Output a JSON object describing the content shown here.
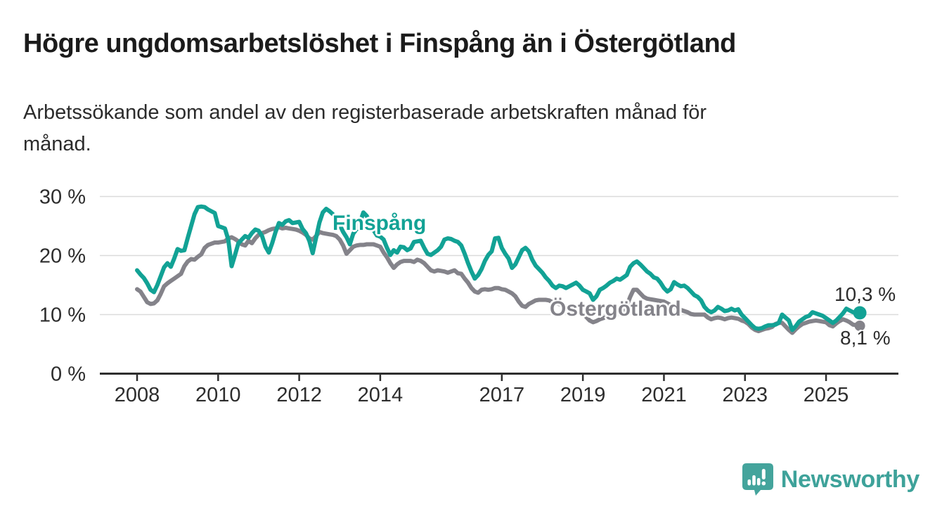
{
  "header": {
    "title": "Högre ungdomsarbetslöshet i Finspång än i Östergötland",
    "subtitle": "Arbetssökande som andel av den registerbaserade arbetskraften månad för\nmånad."
  },
  "footer": {
    "brand": "Newsworthy",
    "logo_icon": "speech-bubble-with-bar-chart-and-exclamation"
  },
  "colors": {
    "finspang": "#12A295",
    "ostergotland": "#84838A",
    "grid": "#DBDBDB",
    "axis": "#2E2E2E",
    "tick_text": "#2D2D2D",
    "logo": "#44A49C"
  },
  "chart_data": {
    "type": "line",
    "title": "Högre ungdomsarbetslöshet i Finspång än i Östergötland",
    "subtitle": "Arbetssökande som andel av den registerbaserade arbetskraften månad för månad.",
    "unit": "%",
    "frequency": "monthly",
    "x_start": "2008-01",
    "x_end": "2025-11",
    "ylim": [
      0,
      32
    ],
    "grid": "horizontal",
    "y_axis_ticks": [
      {
        "value": 30,
        "label": "30 %"
      },
      {
        "value": 20,
        "label": "20 %"
      },
      {
        "value": 10,
        "label": "10 %"
      },
      {
        "value": 0,
        "label": "0 %"
      }
    ],
    "x_axis_ticks": [
      {
        "year": 2008,
        "label": "2008"
      },
      {
        "year": 2010,
        "label": "2010"
      },
      {
        "year": 2012,
        "label": "2012"
      },
      {
        "year": 2014,
        "label": "2014"
      },
      {
        "year": 2017,
        "label": "2017"
      },
      {
        "year": 2019,
        "label": "2019"
      },
      {
        "year": 2021,
        "label": "2021"
      },
      {
        "year": 2023,
        "label": "2023"
      },
      {
        "year": 2025,
        "label": "2025"
      }
    ],
    "series": [
      {
        "name": "Finspång",
        "color": "#12A295",
        "end_label": "10,3 %",
        "end_value": 10.3,
        "end_dot": true,
        "values": [
          17.5,
          16.8,
          16.2,
          15.3,
          14.2,
          13.8,
          15.0,
          16.5,
          18.0,
          18.7,
          18.1,
          19.5,
          21.1,
          20.8,
          20.9,
          23.0,
          25.0,
          27.0,
          28.2,
          28.3,
          28.2,
          27.8,
          27.5,
          27.2,
          25.0,
          24.8,
          24.6,
          22.7,
          18.2,
          20.1,
          22.1,
          22.7,
          23.3,
          23.0,
          23.8,
          24.4,
          24.2,
          23.3,
          21.5,
          20.5,
          22.1,
          24.0,
          25.5,
          25.2,
          25.8,
          26.0,
          25.5,
          25.6,
          25.7,
          24.5,
          23.8,
          22.5,
          20.4,
          23.0,
          25.6,
          27.3,
          27.9,
          27.5,
          27.0,
          26.3,
          25.2,
          24.0,
          23.1,
          21.9,
          23.7,
          24.5,
          25.6,
          27.3,
          26.7,
          25.4,
          24.3,
          23.4,
          23.2,
          22.7,
          21.3,
          20.1,
          20.9,
          20.5,
          21.5,
          21.4,
          20.9,
          21.2,
          22.3,
          22.4,
          22.5,
          21.3,
          20.3,
          20.1,
          20.5,
          20.9,
          21.5,
          22.7,
          22.9,
          22.8,
          22.5,
          22.3,
          21.7,
          20.3,
          18.7,
          17.3,
          16.1,
          16.7,
          17.7,
          19.1,
          20.1,
          20.7,
          22.9,
          23.0,
          21.3,
          20.3,
          19.5,
          17.9,
          18.5,
          19.7,
          20.9,
          21.3,
          20.7,
          19.3,
          18.3,
          17.7,
          17.1,
          16.3,
          15.7,
          14.9,
          14.5,
          14.9,
          14.8,
          14.5,
          14.8,
          15.1,
          15.4,
          14.9,
          14.2,
          13.9,
          13.6,
          12.5,
          13.1,
          14.2,
          14.5,
          14.9,
          15.4,
          15.7,
          16.1,
          15.9,
          16.3,
          16.7,
          18.1,
          18.7,
          19.0,
          18.5,
          17.9,
          17.3,
          16.9,
          16.3,
          16.1,
          15.4,
          14.5,
          13.9,
          14.3,
          15.5,
          15.1,
          14.8,
          14.9,
          14.5,
          13.9,
          13.3,
          13.0,
          12.4,
          11.3,
          10.7,
          10.4,
          10.7,
          11.3,
          11.0,
          10.6,
          10.7,
          11.0,
          10.7,
          10.9,
          10.0,
          9.4,
          8.8,
          8.2,
          7.7,
          7.6,
          7.7,
          8.0,
          8.2,
          8.2,
          8.3,
          8.6,
          10.0,
          9.5,
          9.0,
          7.4,
          8.0,
          8.8,
          9.2,
          9.6,
          9.8,
          10.4,
          10.2,
          10.0,
          9.8,
          9.4,
          9.0,
          8.6,
          9.0,
          9.6,
          10.2,
          11.0,
          10.7,
          10.4,
          10.2,
          10.3
        ]
      },
      {
        "name": "Östergötland",
        "color": "#84838A",
        "end_label": "8,1 %",
        "end_value": 8.1,
        "end_dot": true,
        "values": [
          14.3,
          13.9,
          13.0,
          12.1,
          11.8,
          11.9,
          12.4,
          13.5,
          14.8,
          15.3,
          15.7,
          16.1,
          16.5,
          16.9,
          18.2,
          19.0,
          19.4,
          19.3,
          19.8,
          20.2,
          21.3,
          21.8,
          22.0,
          22.2,
          22.2,
          22.3,
          22.4,
          22.9,
          23.1,
          22.8,
          22.4,
          21.9,
          21.7,
          22.5,
          22.1,
          22.9,
          23.5,
          23.8,
          24.0,
          24.3,
          24.5,
          24.6,
          24.8,
          24.6,
          24.7,
          24.6,
          24.5,
          24.4,
          24.2,
          23.9,
          23.5,
          22.9,
          22.7,
          23.3,
          24.0,
          23.8,
          23.7,
          23.6,
          23.5,
          23.3,
          22.7,
          21.7,
          20.3,
          20.9,
          21.5,
          21.7,
          21.8,
          21.8,
          21.9,
          21.9,
          21.9,
          21.7,
          21.5,
          20.5,
          19.7,
          18.7,
          17.9,
          18.5,
          18.9,
          19.1,
          19.1,
          19.1,
          18.9,
          19.3,
          19.1,
          18.7,
          18.1,
          17.5,
          17.3,
          17.5,
          17.4,
          17.3,
          17.1,
          17.3,
          17.5,
          17.0,
          16.9,
          16.1,
          15.4,
          14.5,
          13.9,
          13.7,
          14.2,
          14.3,
          14.2,
          14.3,
          14.5,
          14.5,
          14.3,
          14.2,
          13.9,
          13.6,
          13.1,
          12.2,
          11.5,
          11.3,
          11.8,
          12.1,
          12.4,
          12.5,
          12.5,
          12.5,
          12.4,
          12.1,
          11.9,
          11.8,
          11.5,
          11.3,
          11.1,
          10.8,
          10.6,
          10.4,
          10.2,
          9.6,
          9.0,
          8.7,
          8.9,
          9.2,
          9.4,
          9.6,
          9.8,
          10.0,
          10.1,
          10.2,
          10.3,
          11.5,
          13.0,
          14.2,
          14.2,
          13.6,
          13.0,
          12.7,
          12.6,
          12.5,
          12.4,
          12.3,
          12.2,
          11.9,
          11.6,
          11.3,
          11.0,
          10.8,
          10.6,
          10.4,
          10.1,
          10.0,
          10.0,
          10.0,
          10.0,
          9.5,
          9.2,
          9.4,
          9.5,
          9.4,
          9.2,
          9.4,
          9.5,
          9.4,
          9.3,
          9.0,
          8.8,
          8.4,
          7.8,
          7.4,
          7.2,
          7.4,
          7.6,
          7.7,
          7.9,
          8.4,
          8.6,
          8.6,
          8.0,
          7.4,
          6.9,
          7.5,
          8.0,
          8.4,
          8.6,
          8.8,
          8.9,
          9.0,
          8.9,
          8.8,
          8.7,
          8.2,
          8.0,
          8.5,
          8.9,
          9.2,
          9.0,
          8.7,
          8.3,
          8.2,
          8.1
        ]
      }
    ]
  }
}
